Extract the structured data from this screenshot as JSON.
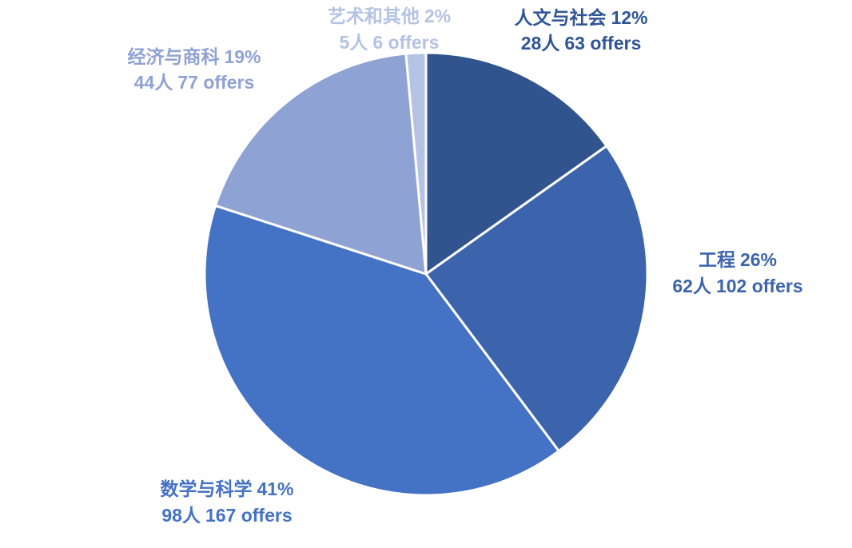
{
  "chart_data": {
    "type": "pie",
    "start_angle_deg": 0,
    "direction": "clockwise",
    "slices": [
      {
        "name": "人文与社会",
        "percent_label": "12%",
        "people": "28人",
        "offers": "63 offers",
        "value": 63,
        "color": "#31548f",
        "text_color": "#2f5597"
      },
      {
        "name": "工程",
        "percent_label": "26%",
        "people": "62人",
        "offers": "102 offers",
        "value": 102,
        "color": "#3c64ad",
        "text_color": "#3c64ad"
      },
      {
        "name": "数学与科学",
        "percent_label": "41%",
        "people": "98人",
        "offers": "167 offers",
        "value": 167,
        "color": "#4472c4",
        "text_color": "#4472c4"
      },
      {
        "name": "经济与商科",
        "percent_label": "19%",
        "people": "44人",
        "offers": "77 offers",
        "value": 77,
        "color": "#8fa2d4",
        "text_color": "#8fa2d4"
      },
      {
        "name": "艺术和其他",
        "percent_label": "2%",
        "people": "5人",
        "offers": "6 offers",
        "value": 6,
        "color": "#b4c2e4",
        "text_color": "#b4c2e4"
      }
    ]
  }
}
